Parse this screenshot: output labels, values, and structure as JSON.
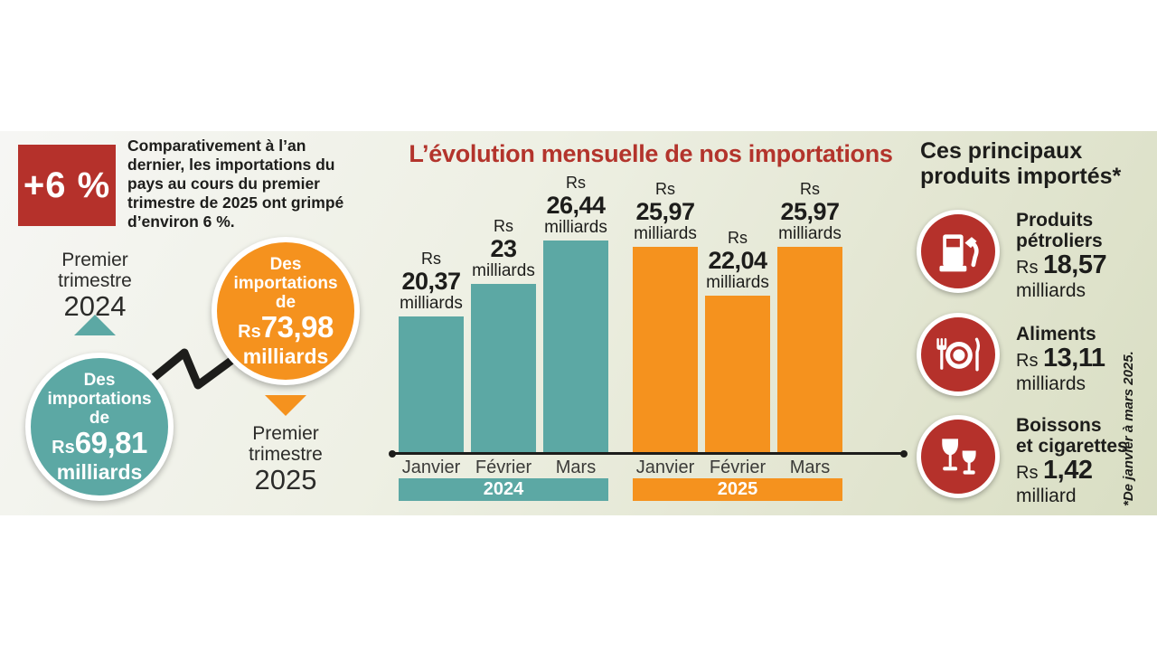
{
  "colors": {
    "teal": "#5CA8A4",
    "orange": "#F5921E",
    "red": "#B5312B",
    "title_red": "#B3342C",
    "ink": "#1D1D1B"
  },
  "summary": {
    "badge": "+6 %",
    "paragraph": "Comparativement à l’an dernier, les importations du pays au cours du premier trimestre de 2025 ont grimpé d’environ 6 %.",
    "q1_2024": {
      "period_line1": "Premier",
      "period_line2": "trimestre",
      "year": "2024",
      "circle_line1": "Des",
      "circle_line2": "importations",
      "circle_line3": "de",
      "currency": "Rs",
      "value": "69,81",
      "unit": "milliards"
    },
    "q1_2025": {
      "period_line1": "Premier",
      "period_line2": "trimestre",
      "year": "2025",
      "circle_line1": "Des",
      "circle_line2": "importations",
      "circle_line3": "de",
      "currency": "Rs",
      "value": "73,98",
      "unit": "milliards"
    }
  },
  "chart_data": {
    "type": "bar",
    "title": "L’évolution mensuelle de nos importations",
    "categories": [
      "Janvier",
      "Février",
      "Mars",
      "Janvier",
      "Février",
      "Mars"
    ],
    "series": [
      {
        "name": "2024",
        "color": "#5CA8A4",
        "values": [
          20.37,
          23,
          26.44
        ]
      },
      {
        "name": "2025",
        "color": "#F5921E",
        "values": [
          25.97,
          22.04,
          25.97
        ]
      }
    ],
    "bar_labels": [
      {
        "currency": "Rs",
        "value": "20,37",
        "unit": "milliards"
      },
      {
        "currency": "Rs",
        "value": "23",
        "unit": "milliards"
      },
      {
        "currency": "Rs",
        "value": "26,44",
        "unit": "milliards"
      },
      {
        "currency": "Rs",
        "value": "25,97",
        "unit": "milliards"
      },
      {
        "currency": "Rs",
        "value": "22,04",
        "unit": "milliards"
      },
      {
        "currency": "Rs",
        "value": "25,97",
        "unit": "milliards"
      }
    ],
    "value_unit": "Rs milliards",
    "xlabel": "",
    "ylabel": "",
    "value_axis_visible": false,
    "grid": false,
    "legend_position": "bottom-bands"
  },
  "products": {
    "heading_line1": "Ces principaux",
    "heading_line2": "produits importés*",
    "items": [
      {
        "icon": "fuel-pump-icon",
        "name_line1": "Produits",
        "name_line2": "pétroliers",
        "currency": "Rs",
        "value": "18,57",
        "unit": "milliards"
      },
      {
        "icon": "food-plate-icon",
        "name_line1": "Aliments",
        "name_line2": "",
        "currency": "Rs",
        "value": "13,11",
        "unit": "milliards"
      },
      {
        "icon": "drinks-icon",
        "name_line1": "Boissons",
        "name_line2": "et cigarettes",
        "currency": "Rs",
        "value": "1,42",
        "unit": "milliard"
      }
    ],
    "footnote": "*De janvier à mars 2025."
  }
}
